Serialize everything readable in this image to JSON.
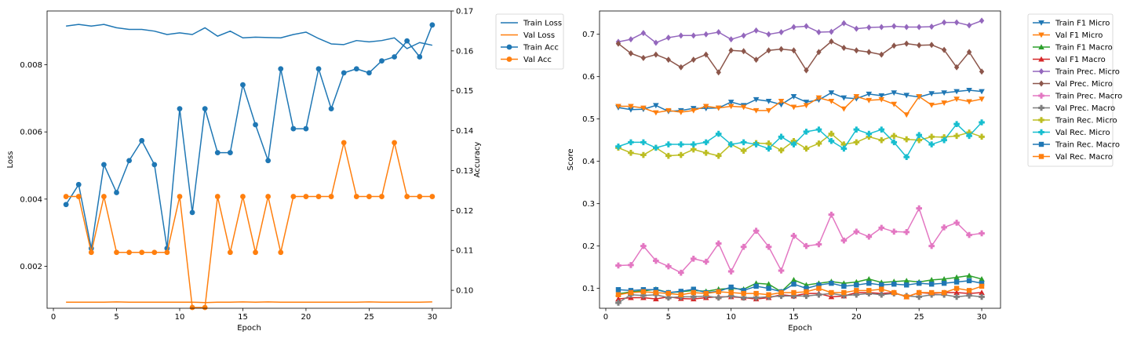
{
  "chart_data": [
    {
      "type": "line",
      "xlabel": "Epoch",
      "ylabel": "Loss",
      "y2label": "Accuracy",
      "xlim": [
        -0.5,
        31.5
      ],
      "ylim": [
        0.00075,
        0.0096
      ],
      "y2lim": [
        0.0955,
        0.17
      ],
      "xticks": [
        "0",
        "5",
        "10",
        "15",
        "20",
        "25",
        "30"
      ],
      "yticks": [
        "0.002",
        "0.004",
        "0.006",
        "0.008"
      ],
      "y2ticks": [
        "0.10",
        "0.11",
        "0.12",
        "0.13",
        "0.14",
        "0.15",
        "0.16",
        "0.17"
      ],
      "legend_position": "outside-top-right",
      "x": [
        1,
        2,
        3,
        4,
        5,
        6,
        7,
        8,
        9,
        10,
        11,
        12,
        13,
        14,
        15,
        16,
        17,
        18,
        19,
        20,
        21,
        22,
        23,
        24,
        25,
        26,
        27,
        28,
        29,
        30
      ],
      "series": [
        {
          "name": "Train Loss",
          "axis": "left",
          "color": "#1f77b4",
          "marker": "none",
          "values": [
            0.00915,
            0.0092,
            0.00915,
            0.0092,
            0.0091,
            0.00905,
            0.00905,
            0.009,
            0.0089,
            0.00895,
            0.0089,
            0.0091,
            0.00885,
            0.009,
            0.0088,
            0.00882,
            0.00881,
            0.0088,
            0.0089,
            0.00897,
            0.00878,
            0.00862,
            0.0086,
            0.00872,
            0.00868,
            0.00872,
            0.0088,
            0.00848,
            0.00866,
            0.00858
          ]
        },
        {
          "name": "Val Loss",
          "axis": "left",
          "color": "#ff7f0e",
          "marker": "none",
          "values": [
            0.00093,
            0.00093,
            0.00093,
            0.00093,
            0.00094,
            0.00093,
            0.00093,
            0.00093,
            0.00093,
            0.00093,
            0.00093,
            0.00092,
            0.00093,
            0.00093,
            0.00094,
            0.00093,
            0.00094,
            0.00093,
            0.00093,
            0.00093,
            0.00093,
            0.00093,
            0.00093,
            0.00093,
            0.00094,
            0.00093,
            0.00093,
            0.00093,
            0.00093,
            0.00094
          ]
        },
        {
          "name": "Train Acc",
          "axis": "right",
          "color": "#1f77b4",
          "marker": "circle",
          "values": [
            0.1215,
            0.1265,
            0.1105,
            0.1315,
            0.1245,
            0.1325,
            0.1375,
            0.1315,
            0.1105,
            0.1455,
            0.1195,
            0.1455,
            0.1345,
            0.1345,
            0.1515,
            0.1415,
            0.1325,
            0.1555,
            0.1405,
            0.1405,
            0.1555,
            0.1455,
            0.1545,
            0.1555,
            0.1545,
            0.1575,
            0.1585,
            0.1625,
            0.1585,
            0.1665
          ]
        },
        {
          "name": "Val Acc",
          "axis": "right",
          "color": "#ff7f0e",
          "marker": "circle",
          "values": [
            0.1235,
            0.1235,
            0.1095,
            0.1235,
            0.1095,
            0.1095,
            0.1095,
            0.1095,
            0.1095,
            0.1235,
            0.0957,
            0.0957,
            0.1235,
            0.1095,
            0.1235,
            0.1095,
            0.1235,
            0.1095,
            0.1235,
            0.1235,
            0.1235,
            0.1235,
            0.137,
            0.1235,
            0.1235,
            0.1235,
            0.137,
            0.1235,
            0.1235,
            0.1235
          ]
        }
      ]
    },
    {
      "type": "line",
      "xlabel": "Epoch",
      "ylabel": "Score",
      "xlim": [
        -0.5,
        31.5
      ],
      "ylim": [
        0.053,
        0.755
      ],
      "xticks": [
        "0",
        "5",
        "10",
        "15",
        "20",
        "25",
        "30"
      ],
      "yticks": [
        "0.1",
        "0.2",
        "0.3",
        "0.4",
        "0.5",
        "0.6",
        "0.7"
      ],
      "legend_position": "outside-top-right",
      "x": [
        1,
        2,
        3,
        4,
        5,
        6,
        7,
        8,
        9,
        10,
        11,
        12,
        13,
        14,
        15,
        16,
        17,
        18,
        19,
        20,
        21,
        22,
        23,
        24,
        25,
        26,
        27,
        28,
        29,
        30
      ],
      "series": [
        {
          "name": "Train F1 Micro",
          "color": "#1f77b4",
          "marker": "triangle-down",
          "values": [
            0.527,
            0.522,
            0.523,
            0.532,
            0.518,
            0.52,
            0.525,
            0.525,
            0.526,
            0.54,
            0.532,
            0.546,
            0.542,
            0.534,
            0.553,
            0.54,
            0.545,
            0.562,
            0.55,
            0.548,
            0.559,
            0.555,
            0.562,
            0.556,
            0.552,
            0.56,
            0.562,
            0.565,
            0.568,
            0.565
          ]
        },
        {
          "name": "Val F1 Micro",
          "color": "#ff7f0e",
          "marker": "triangle-down",
          "values": [
            0.53,
            0.53,
            0.526,
            0.515,
            0.52,
            0.516,
            0.52,
            0.53,
            0.526,
            0.53,
            0.528,
            0.52,
            0.52,
            0.542,
            0.528,
            0.532,
            0.55,
            0.542,
            0.524,
            0.553,
            0.544,
            0.546,
            0.535,
            0.51,
            0.553,
            0.533,
            0.538,
            0.547,
            0.541,
            0.547
          ]
        },
        {
          "name": "Train F1 Macro",
          "color": "#2ca02c",
          "marker": "triangle-up",
          "values": [
            0.087,
            0.092,
            0.094,
            0.098,
            0.09,
            0.092,
            0.095,
            0.093,
            0.098,
            0.1,
            0.098,
            0.112,
            0.11,
            0.092,
            0.12,
            0.108,
            0.112,
            0.116,
            0.112,
            0.115,
            0.122,
            0.114,
            0.116,
            0.118,
            0.115,
            0.12,
            0.122,
            0.126,
            0.13,
            0.122
          ]
        },
        {
          "name": "Val F1 Macro",
          "color": "#d62728",
          "marker": "triangle-up",
          "values": [
            0.075,
            0.078,
            0.078,
            0.075,
            0.08,
            0.076,
            0.075,
            0.078,
            0.08,
            0.08,
            0.078,
            0.075,
            0.078,
            0.085,
            0.082,
            0.088,
            0.088,
            0.08,
            0.082,
            0.09,
            0.09,
            0.088,
            0.09,
            0.08,
            0.09,
            0.088,
            0.09,
            0.09,
            0.088,
            0.09
          ]
        },
        {
          "name": "Train Prec. Micro",
          "color": "#9467bd",
          "marker": "diamond",
          "values": [
            0.682,
            0.688,
            0.703,
            0.68,
            0.692,
            0.697,
            0.697,
            0.7,
            0.705,
            0.688,
            0.697,
            0.709,
            0.7,
            0.705,
            0.717,
            0.719,
            0.705,
            0.706,
            0.726,
            0.713,
            0.716,
            0.717,
            0.719,
            0.717,
            0.717,
            0.718,
            0.728,
            0.728,
            0.721,
            0.732
          ]
        },
        {
          "name": "Val Prec. Micro",
          "color": "#8c564b",
          "marker": "diamond",
          "values": [
            0.678,
            0.655,
            0.644,
            0.652,
            0.64,
            0.622,
            0.64,
            0.652,
            0.61,
            0.662,
            0.66,
            0.64,
            0.662,
            0.665,
            0.662,
            0.615,
            0.658,
            0.683,
            0.668,
            0.662,
            0.658,
            0.652,
            0.673,
            0.678,
            0.674,
            0.675,
            0.663,
            0.622,
            0.658,
            0.612
          ]
        },
        {
          "name": "Train Prec. Macro",
          "color": "#e377c2",
          "marker": "plus",
          "values": [
            0.154,
            0.155,
            0.2,
            0.165,
            0.152,
            0.137,
            0.17,
            0.163,
            0.206,
            0.14,
            0.198,
            0.236,
            0.198,
            0.142,
            0.224,
            0.2,
            0.204,
            0.274,
            0.213,
            0.234,
            0.222,
            0.243,
            0.234,
            0.233,
            0.289,
            0.2,
            0.244,
            0.255,
            0.226,
            0.23
          ]
        },
        {
          "name": "Val Prec. Macro",
          "color": "#7f7f7f",
          "marker": "plus",
          "values": [
            0.066,
            0.085,
            0.083,
            0.085,
            0.078,
            0.08,
            0.08,
            0.082,
            0.078,
            0.082,
            0.078,
            0.078,
            0.08,
            0.082,
            0.082,
            0.082,
            0.085,
            0.088,
            0.083,
            0.085,
            0.088,
            0.085,
            0.088,
            0.082,
            0.08,
            0.085,
            0.085,
            0.08,
            0.083,
            0.08
          ]
        },
        {
          "name": "Train Rec. Micro",
          "color": "#bcbd22",
          "marker": "plus",
          "values": [
            0.432,
            0.42,
            0.415,
            0.432,
            0.413,
            0.415,
            0.428,
            0.42,
            0.413,
            0.44,
            0.425,
            0.443,
            0.442,
            0.426,
            0.448,
            0.43,
            0.442,
            0.465,
            0.44,
            0.445,
            0.458,
            0.45,
            0.46,
            0.452,
            0.45,
            0.458,
            0.457,
            0.46,
            0.468,
            0.458
          ]
        },
        {
          "name": "Val Rec. Micro",
          "color": "#17becf",
          "marker": "plus",
          "values": [
            0.435,
            0.445,
            0.445,
            0.432,
            0.44,
            0.44,
            0.44,
            0.445,
            0.465,
            0.44,
            0.445,
            0.44,
            0.43,
            0.458,
            0.44,
            0.47,
            0.475,
            0.448,
            0.43,
            0.475,
            0.465,
            0.475,
            0.445,
            0.41,
            0.462,
            0.44,
            0.45,
            0.488,
            0.46,
            0.492
          ]
        },
        {
          "name": "Train Rec. Macro",
          "color": "#1f77b4",
          "marker": "square",
          "values": [
            0.097,
            0.095,
            0.097,
            0.097,
            0.09,
            0.093,
            0.098,
            0.09,
            0.093,
            0.103,
            0.095,
            0.105,
            0.1,
            0.092,
            0.11,
            0.1,
            0.108,
            0.112,
            0.105,
            0.108,
            0.112,
            0.108,
            0.11,
            0.108,
            0.112,
            0.11,
            0.112,
            0.115,
            0.118,
            0.112
          ]
        },
        {
          "name": "Val Rec. Macro",
          "color": "#ff7f0e",
          "marker": "square",
          "values": [
            0.085,
            0.09,
            0.092,
            0.09,
            0.088,
            0.085,
            0.09,
            0.088,
            0.092,
            0.09,
            0.088,
            0.088,
            0.085,
            0.09,
            0.09,
            0.092,
            0.1,
            0.09,
            0.09,
            0.095,
            0.095,
            0.098,
            0.09,
            0.08,
            0.09,
            0.09,
            0.09,
            0.1,
            0.095,
            0.105
          ]
        }
      ]
    }
  ]
}
